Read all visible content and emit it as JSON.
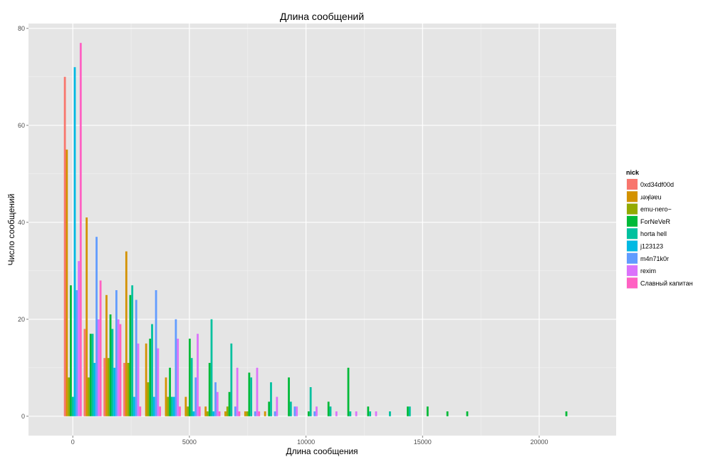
{
  "chart_data": {
    "type": "bar",
    "title": "Длина сообщений",
    "xlabel": "Длина сообщения",
    "ylabel": "Число сообщений",
    "xlim": [
      -1900,
      23300
    ],
    "ylim": [
      -4,
      81
    ],
    "x_ticks": [
      0,
      5000,
      10000,
      15000,
      20000
    ],
    "y_ticks": [
      0,
      20,
      40,
      60,
      80
    ],
    "x_tick_labels": [
      "0",
      "5000",
      "10000",
      "15000",
      "20000"
    ],
    "y_tick_labels": [
      "0",
      "20",
      "40",
      "60",
      "80"
    ],
    "bin_width": 850,
    "grid": true,
    "legend_position": "right",
    "legend_title": "nick",
    "series": [
      {
        "name": "0xd34df00d",
        "color": "#F8766D",
        "points": [
          [
            0,
            70
          ],
          [
            850,
            18
          ],
          [
            1700,
            12
          ],
          [
            2550,
            11
          ]
        ]
      },
      {
        "name": "ɹǝʞlǝɐu",
        "color": "#D39200",
        "points": [
          [
            0,
            55
          ],
          [
            850,
            41
          ],
          [
            1700,
            25
          ],
          [
            2550,
            34
          ],
          [
            3400,
            15
          ],
          [
            4250,
            8
          ],
          [
            5100,
            4
          ],
          [
            5950,
            2
          ],
          [
            6800,
            1
          ],
          [
            7650,
            1
          ],
          [
            8500,
            1
          ]
        ]
      },
      {
        "name": "emu-nero~",
        "color": "#93AA00",
        "points": [
          [
            0,
            8
          ],
          [
            850,
            8
          ],
          [
            1700,
            12
          ],
          [
            2550,
            11
          ],
          [
            3400,
            7
          ],
          [
            4250,
            4
          ],
          [
            5100,
            2
          ],
          [
            5950,
            1
          ],
          [
            6800,
            2
          ],
          [
            7650,
            1
          ]
        ]
      },
      {
        "name": "ForNeVeR",
        "color": "#00BA38",
        "points": [
          [
            0,
            27
          ],
          [
            850,
            17
          ],
          [
            1700,
            21
          ],
          [
            2550,
            25
          ],
          [
            3400,
            16
          ],
          [
            4250,
            10
          ],
          [
            5100,
            16
          ],
          [
            5950,
            11
          ],
          [
            6800,
            5
          ],
          [
            7650,
            9
          ],
          [
            8500,
            3
          ],
          [
            9350,
            8
          ],
          [
            10200,
            1
          ],
          [
            11050,
            3
          ],
          [
            11900,
            10
          ],
          [
            12750,
            2
          ],
          [
            14450,
            2
          ],
          [
            15300,
            2
          ],
          [
            16150,
            1
          ],
          [
            17000,
            1
          ],
          [
            21250,
            1
          ]
        ]
      },
      {
        "name": "horta hell",
        "color": "#00C19F",
        "points": [
          [
            0,
            4
          ],
          [
            850,
            17
          ],
          [
            1700,
            18
          ],
          [
            2550,
            27
          ],
          [
            3400,
            19
          ],
          [
            4250,
            4
          ],
          [
            5100,
            12
          ],
          [
            5950,
            20
          ],
          [
            6800,
            15
          ],
          [
            7650,
            8
          ],
          [
            8500,
            7
          ],
          [
            9350,
            3
          ],
          [
            10200,
            6
          ],
          [
            11050,
            2
          ],
          [
            11900,
            1
          ],
          [
            12750,
            1
          ],
          [
            13600,
            1
          ],
          [
            14450,
            2
          ]
        ]
      },
      {
        "name": "j123123",
        "color": "#00B9E3",
        "points": [
          [
            0,
            72
          ],
          [
            850,
            11
          ],
          [
            1700,
            10
          ],
          [
            2550,
            4
          ],
          [
            3400,
            4
          ],
          [
            4250,
            4
          ],
          [
            5100,
            1
          ],
          [
            5950,
            1
          ]
        ]
      },
      {
        "name": "m4n71k0r",
        "color": "#619CFF",
        "points": [
          [
            0,
            26
          ],
          [
            850,
            37
          ],
          [
            1700,
            26
          ],
          [
            2550,
            24
          ],
          [
            3400,
            26
          ],
          [
            4250,
            20
          ],
          [
            5100,
            8
          ],
          [
            5950,
            7
          ],
          [
            6800,
            2
          ],
          [
            7650,
            1
          ],
          [
            8500,
            1
          ],
          [
            9350,
            2
          ],
          [
            10200,
            1
          ]
        ]
      },
      {
        "name": "rexim",
        "color": "#DB72FB",
        "points": [
          [
            0,
            32
          ],
          [
            850,
            20
          ],
          [
            1700,
            20
          ],
          [
            2550,
            15
          ],
          [
            3400,
            14
          ],
          [
            4250,
            16
          ],
          [
            5100,
            17
          ],
          [
            5950,
            5
          ],
          [
            6800,
            10
          ],
          [
            7650,
            10
          ],
          [
            8500,
            4
          ],
          [
            9350,
            2
          ],
          [
            10200,
            2
          ],
          [
            11050,
            1
          ],
          [
            11900,
            1
          ],
          [
            12750,
            1
          ]
        ]
      },
      {
        "name": "Славный капитан",
        "color": "#FF61C3",
        "points": [
          [
            0,
            77
          ],
          [
            850,
            28
          ],
          [
            1700,
            19
          ],
          [
            2550,
            2
          ],
          [
            3400,
            2
          ],
          [
            4250,
            2
          ],
          [
            5100,
            2
          ],
          [
            5950,
            1
          ],
          [
            6800,
            1
          ],
          [
            7650,
            1
          ]
        ]
      }
    ]
  }
}
